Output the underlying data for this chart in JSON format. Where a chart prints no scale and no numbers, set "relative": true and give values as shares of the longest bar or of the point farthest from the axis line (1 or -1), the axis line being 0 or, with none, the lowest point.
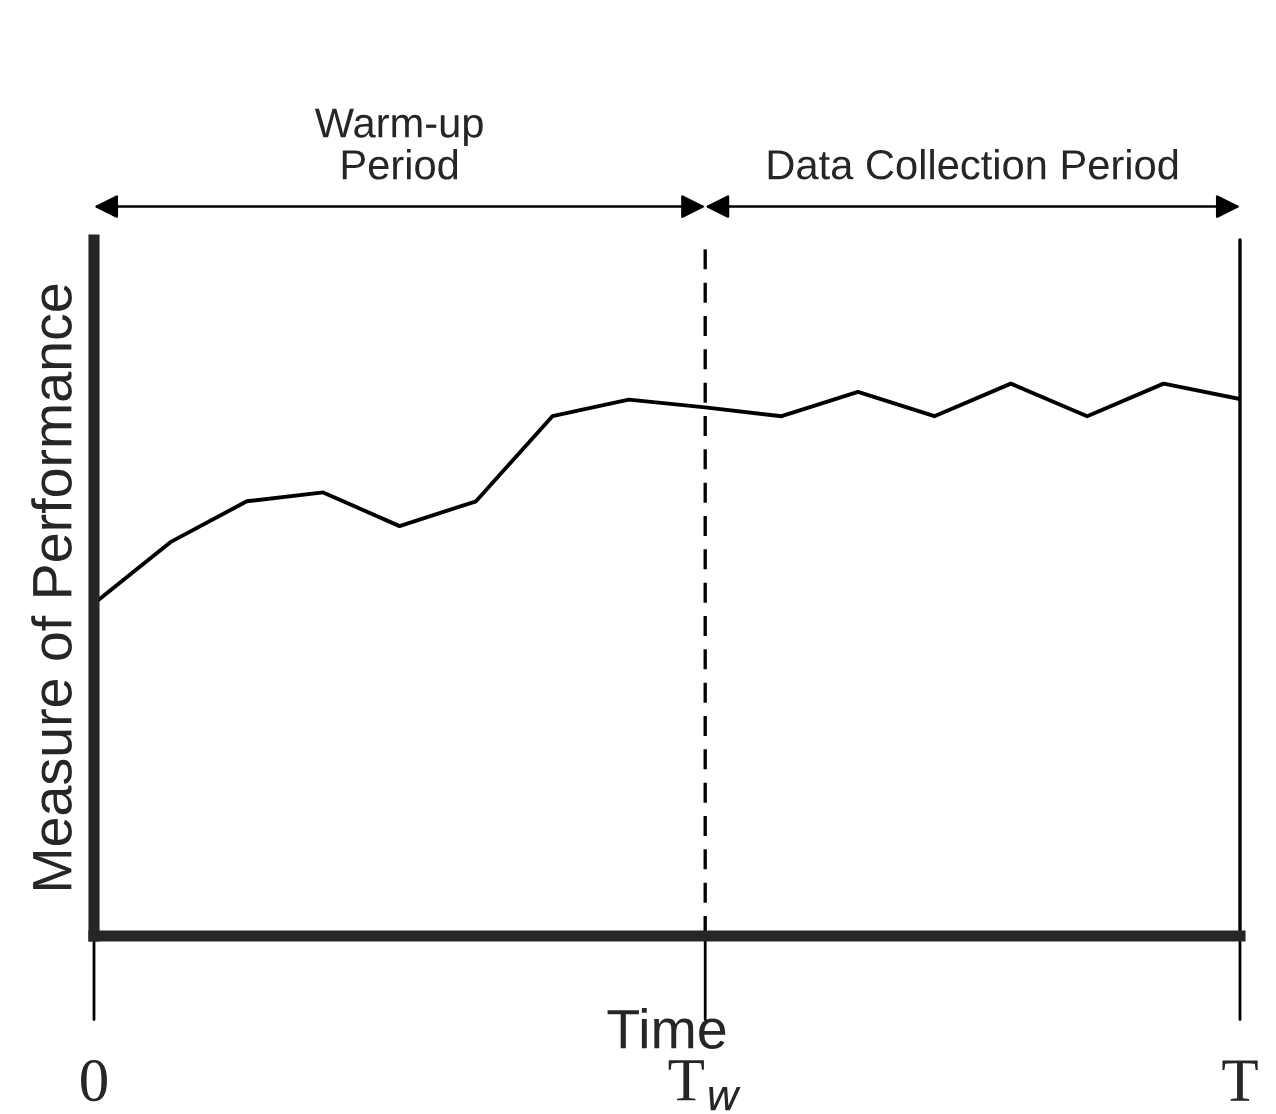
{
  "chart_data": {
    "type": "line",
    "relative": true,
    "xlabel": "Time",
    "ylabel": "Measure of Performance",
    "categories": [
      "0",
      null,
      null,
      null,
      null,
      null,
      null,
      null,
      "T$_{w}$",
      null,
      null,
      null,
      null,
      null,
      null,
      "T"
    ],
    "series": [
      {
        "color": "#000000",
        "values": [
          0.602,
          0.713,
          0.787,
          0.803,
          0.742,
          0.787,
          0.941,
          0.971,
          0.957,
          0.941,
          0.985,
          0.941,
          1,
          0.941,
          1,
          0.972
        ]
      }
    ],
    "ref_lines": [
      {
        "axis": "x",
        "value": "T$_{w}$",
        "color": "#000000",
        "line_style": "dashed"
      },
      {
        "axis": "x",
        "value": "T",
        "color": "#000000",
        "line_style": "solid"
      }
    ],
    "annotations": [
      "Warm-up\nPeriod",
      "Data Collection Period"
    ],
    "tick_labels": "x",
    "marker": "none",
    "line_style": "solid",
    "grid": false,
    "legend": false
  }
}
